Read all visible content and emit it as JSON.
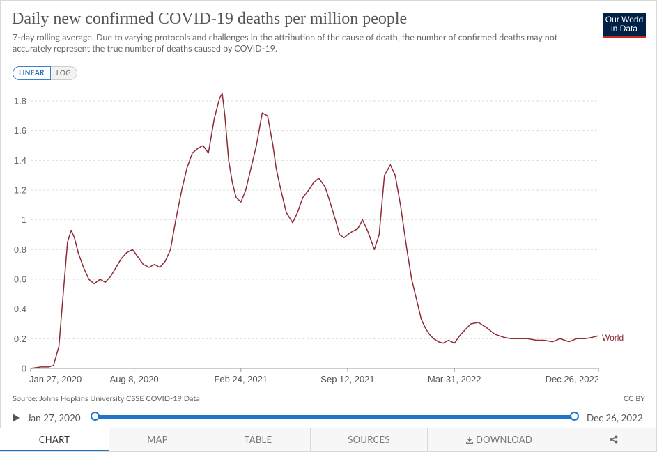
{
  "title": "Daily new confirmed COVID-19 deaths per million people",
  "subtitle": "7-day rolling average. Due to varying protocols and challenges in the attribution of the cause of death, the number of confirmed deaths may not accurately represent the true number of deaths caused by COVID-19.",
  "logo": {
    "line1": "Our World",
    "line2": "in Data"
  },
  "scale_toggle": {
    "linear": "LINEAR",
    "log": "LOG",
    "selected": "LINEAR"
  },
  "source": "Source: Johns Hopkins University CSSE COVID-19 Data",
  "license": "CC BY",
  "timeline": {
    "start": "Jan 27, 2020",
    "end": "Dec 26, 2022"
  },
  "tabs": [
    "CHART",
    "MAP",
    "TABLE",
    "SOURCES",
    "DOWNLOAD",
    ""
  ],
  "active_tab": "CHART",
  "icons": {
    "play": "play-icon",
    "download": "download-icon",
    "share": "share-icon"
  },
  "colors": {
    "series": "#8c2b35",
    "accent": "#1f76c8",
    "logo_bg": "#002147",
    "logo_bar": "#ce261e"
  },
  "chart_data": {
    "type": "line",
    "title": "Daily new confirmed COVID-19 deaths per million people",
    "xlabel": "",
    "ylabel": "",
    "y_scale": "linear",
    "ylim": [
      0,
      1.8
    ],
    "yticks": [
      "0",
      "0.2",
      "0.4",
      "0.6",
      "0.8",
      "1",
      "1.2",
      "1.4",
      "1.6",
      "1.8"
    ],
    "xticks": [
      "Jan 27, 2020",
      "Aug 8, 2020",
      "Feb 24, 2021",
      "Sep 12, 2021",
      "Mar 31, 2022",
      "Dec 26, 2022"
    ],
    "grid": "horizontal dashed",
    "series": [
      {
        "name": "World",
        "x": [
          "2020-01-27",
          "2020-02-15",
          "2020-03-01",
          "2020-03-10",
          "2020-03-20",
          "2020-03-28",
          "2020-04-05",
          "2020-04-12",
          "2020-04-18",
          "2020-04-25",
          "2020-05-05",
          "2020-05-15",
          "2020-05-25",
          "2020-06-05",
          "2020-06-15",
          "2020-06-25",
          "2020-07-05",
          "2020-07-15",
          "2020-07-25",
          "2020-08-05",
          "2020-08-15",
          "2020-08-25",
          "2020-09-05",
          "2020-09-15",
          "2020-09-25",
          "2020-10-05",
          "2020-10-15",
          "2020-10-25",
          "2020-11-05",
          "2020-11-15",
          "2020-11-25",
          "2020-12-05",
          "2020-12-15",
          "2020-12-25",
          "2021-01-05",
          "2021-01-15",
          "2021-01-20",
          "2021-01-25",
          "2021-02-01",
          "2021-02-08",
          "2021-02-15",
          "2021-02-24",
          "2021-03-05",
          "2021-03-15",
          "2021-03-25",
          "2021-04-05",
          "2021-04-15",
          "2021-04-25",
          "2021-05-01",
          "2021-05-10",
          "2021-05-20",
          "2021-06-01",
          "2021-06-10",
          "2021-06-20",
          "2021-07-01",
          "2021-07-10",
          "2021-07-20",
          "2021-08-01",
          "2021-08-10",
          "2021-08-20",
          "2021-08-28",
          "2021-09-05",
          "2021-09-12",
          "2021-09-20",
          "2021-10-01",
          "2021-10-10",
          "2021-10-20",
          "2021-11-01",
          "2021-11-10",
          "2021-11-20",
          "2021-12-01",
          "2021-12-10",
          "2021-12-20",
          "2022-01-01",
          "2022-01-10",
          "2022-01-20",
          "2022-01-28",
          "2022-02-05",
          "2022-02-12",
          "2022-02-20",
          "2022-03-01",
          "2022-03-10",
          "2022-03-20",
          "2022-03-31",
          "2022-04-10",
          "2022-04-20",
          "2022-05-01",
          "2022-05-15",
          "2022-06-01",
          "2022-06-15",
          "2022-07-01",
          "2022-07-15",
          "2022-08-01",
          "2022-08-15",
          "2022-09-01",
          "2022-09-15",
          "2022-10-01",
          "2022-10-15",
          "2022-11-01",
          "2022-11-15",
          "2022-12-01",
          "2022-12-15",
          "2022-12-26"
        ],
        "values": [
          0.0,
          0.01,
          0.01,
          0.02,
          0.15,
          0.5,
          0.85,
          0.93,
          0.88,
          0.78,
          0.68,
          0.6,
          0.57,
          0.6,
          0.58,
          0.62,
          0.68,
          0.74,
          0.78,
          0.8,
          0.75,
          0.7,
          0.68,
          0.7,
          0.68,
          0.72,
          0.8,
          1.0,
          1.2,
          1.35,
          1.45,
          1.48,
          1.5,
          1.45,
          1.68,
          1.82,
          1.85,
          1.7,
          1.4,
          1.25,
          1.15,
          1.12,
          1.2,
          1.35,
          1.5,
          1.72,
          1.7,
          1.5,
          1.35,
          1.2,
          1.05,
          0.98,
          1.05,
          1.15,
          1.2,
          1.25,
          1.28,
          1.22,
          1.12,
          1.0,
          0.9,
          0.88,
          0.9,
          0.92,
          0.94,
          1.0,
          0.92,
          0.8,
          0.9,
          1.3,
          1.37,
          1.3,
          1.1,
          0.8,
          0.6,
          0.45,
          0.33,
          0.27,
          0.23,
          0.2,
          0.18,
          0.17,
          0.19,
          0.17,
          0.22,
          0.26,
          0.3,
          0.31,
          0.27,
          0.23,
          0.21,
          0.2,
          0.2,
          0.2,
          0.19,
          0.19,
          0.18,
          0.2,
          0.18,
          0.2,
          0.2,
          0.21,
          0.22
        ]
      }
    ]
  }
}
